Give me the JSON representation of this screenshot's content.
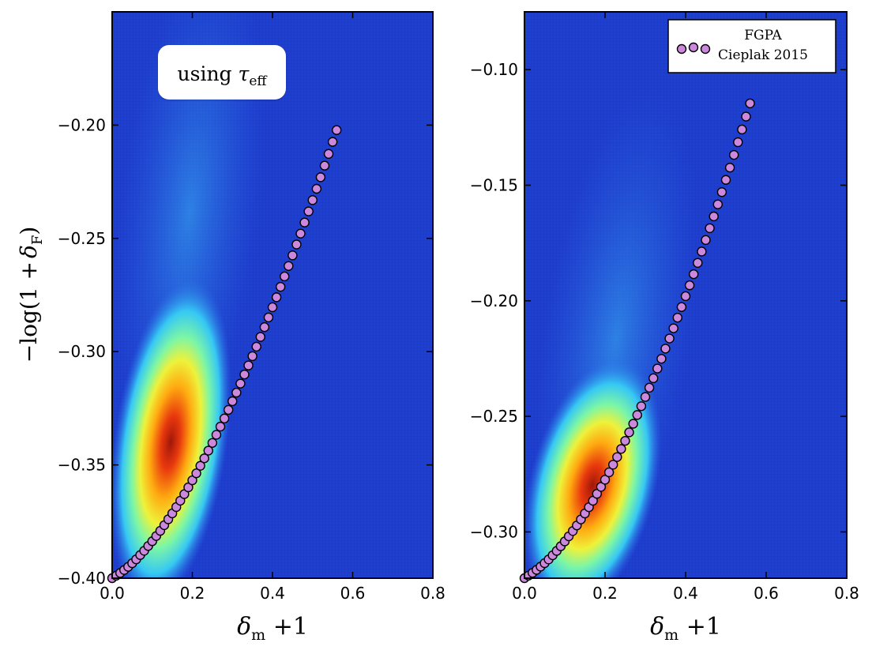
{
  "chart_data": [
    {
      "type": "heatmap",
      "panel": "left",
      "xlabel": "δm + 1",
      "xlabel_main": "δ",
      "xlabel_sub": "m",
      "xlabel_tail": " +1",
      "ylabel": "−log(1 + δF)",
      "ylabel_parts": [
        "−log(1 +",
        "δ",
        "F",
        ")"
      ],
      "xlim": [
        0.0,
        0.8
      ],
      "ylim": [
        -0.4,
        -0.15
      ],
      "xticks": [
        0.0,
        0.2,
        0.4,
        0.6,
        0.8
      ],
      "xtick_labels": [
        "0.0",
        "0.2",
        "0.4",
        "0.6",
        "0.8"
      ],
      "yticks": [
        -0.4,
        -0.35,
        -0.3,
        -0.25,
        -0.2
      ],
      "ytick_labels": [
        "−0.40",
        "−0.35",
        "−0.30",
        "−0.25",
        "−0.20"
      ],
      "density_peak": {
        "x": 0.145,
        "y": -0.352
      },
      "annotation_parts": [
        "using ",
        "τ",
        "eff"
      ],
      "annotation": "using τeff",
      "series": [
        {
          "name": "FGPA",
          "color": "#cc88dd",
          "x": [
            0.0,
            0.01,
            0.02,
            0.03,
            0.04,
            0.05,
            0.06,
            0.07,
            0.08,
            0.09,
            0.1,
            0.11,
            0.12,
            0.13,
            0.14,
            0.15,
            0.16,
            0.17,
            0.18,
            0.19,
            0.2,
            0.21,
            0.22,
            0.23,
            0.24,
            0.25,
            0.26,
            0.27,
            0.28,
            0.29,
            0.3,
            0.31,
            0.32,
            0.33,
            0.34,
            0.35,
            0.36,
            0.37,
            0.38,
            0.39,
            0.4,
            0.41,
            0.42,
            0.43,
            0.44,
            0.45,
            0.46,
            0.47,
            0.48,
            0.49,
            0.5,
            0.51,
            0.52,
            0.53,
            0.54,
            0.55,
            0.56
          ],
          "y": [
            -0.4,
            -0.3989,
            -0.3977,
            -0.3964,
            -0.395,
            -0.3934,
            -0.3917,
            -0.3898,
            -0.3879,
            -0.3858,
            -0.3837,
            -0.3814,
            -0.3791,
            -0.3766,
            -0.374,
            -0.3714,
            -0.3686,
            -0.3658,
            -0.3629,
            -0.3599,
            -0.3568,
            -0.3537,
            -0.3504,
            -0.3471,
            -0.3437,
            -0.3403,
            -0.3367,
            -0.3331,
            -0.3295,
            -0.3257,
            -0.3219,
            -0.3181,
            -0.3141,
            -0.3101,
            -0.3061,
            -0.302,
            -0.2978,
            -0.2935,
            -0.2892,
            -0.2849,
            -0.2804,
            -0.276,
            -0.2714,
            -0.2668,
            -0.2622,
            -0.2575,
            -0.2527,
            -0.2479,
            -0.243,
            -0.2381,
            -0.2331,
            -0.2281,
            -0.223,
            -0.2179,
            -0.2127,
            -0.2074,
            -0.2022
          ]
        }
      ]
    },
    {
      "type": "heatmap",
      "panel": "right",
      "xlabel": "δm + 1",
      "xlabel_main": "δ",
      "xlabel_sub": "m",
      "xlabel_tail": " +1",
      "xlim": [
        0.0,
        0.8
      ],
      "ylim": [
        -0.32,
        -0.075
      ],
      "xticks": [
        0.0,
        0.2,
        0.4,
        0.6,
        0.8
      ],
      "xtick_labels": [
        "0.0",
        "0.2",
        "0.4",
        "0.6",
        "0.8"
      ],
      "yticks": [
        -0.3,
        -0.25,
        -0.2,
        -0.15,
        -0.1
      ],
      "ytick_labels": [
        "−0.30",
        "−0.25",
        "−0.20",
        "−0.15",
        "−0.10"
      ],
      "density_peak": {
        "x": 0.145,
        "y": -0.285
      },
      "legend": {
        "position": "top-right",
        "entries": [
          "FGPA",
          "Cieplak 2015"
        ]
      },
      "series": [
        {
          "name": "FGPA",
          "color": "#cc88dd",
          "x": [
            0.0,
            0.01,
            0.02,
            0.03,
            0.04,
            0.05,
            0.06,
            0.07,
            0.08,
            0.09,
            0.1,
            0.11,
            0.12,
            0.13,
            0.14,
            0.15,
            0.16,
            0.17,
            0.18,
            0.19,
            0.2,
            0.21,
            0.22,
            0.23,
            0.24,
            0.25,
            0.26,
            0.27,
            0.28,
            0.29,
            0.3,
            0.31,
            0.32,
            0.33,
            0.34,
            0.35,
            0.36,
            0.37,
            0.38,
            0.39,
            0.4,
            0.41,
            0.42,
            0.43,
            0.44,
            0.45,
            0.46,
            0.47,
            0.48,
            0.49,
            0.5,
            0.51,
            0.52,
            0.53,
            0.54,
            0.55,
            0.56
          ],
          "y": [
            -0.32,
            -0.3189,
            -0.3177,
            -0.3164,
            -0.315,
            -0.3135,
            -0.3119,
            -0.3101,
            -0.3082,
            -0.3062,
            -0.3041,
            -0.3019,
            -0.2996,
            -0.2972,
            -0.2946,
            -0.292,
            -0.2893,
            -0.2865,
            -0.2835,
            -0.2805,
            -0.2774,
            -0.2742,
            -0.2709,
            -0.2676,
            -0.2641,
            -0.2606,
            -0.2569,
            -0.2532,
            -0.2494,
            -0.2456,
            -0.2416,
            -0.2376,
            -0.2335,
            -0.2293,
            -0.2251,
            -0.2207,
            -0.2163,
            -0.2119,
            -0.2073,
            -0.2027,
            -0.198,
            -0.1933,
            -0.1885,
            -0.1836,
            -0.1787,
            -0.1737,
            -0.1686,
            -0.1635,
            -0.1583,
            -0.153,
            -0.1477,
            -0.1424,
            -0.1369,
            -0.1314,
            -0.1259,
            -0.1203,
            -0.1146
          ]
        }
      ]
    }
  ]
}
